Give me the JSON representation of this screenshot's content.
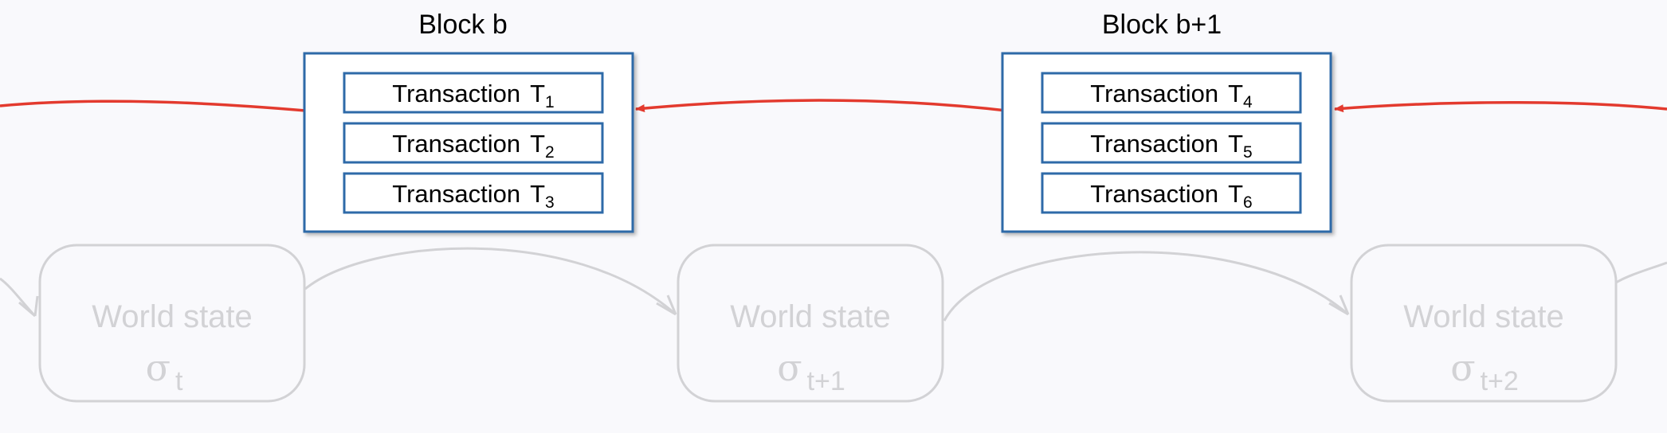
{
  "colors": {
    "background": "#f9f9fc",
    "block_border": "#2e6aa8",
    "arrow": "#e33a2e",
    "world_state": "#d2d2d5"
  },
  "blocks": [
    {
      "title": "Block b",
      "transactions": [
        {
          "label": "Transaction",
          "symbol": "T",
          "subscript": "1"
        },
        {
          "label": "Transaction",
          "symbol": "T",
          "subscript": "2"
        },
        {
          "label": "Transaction",
          "symbol": "T",
          "subscript": "3"
        }
      ]
    },
    {
      "title": "Block b+1",
      "transactions": [
        {
          "label": "Transaction",
          "symbol": "T",
          "subscript": "4"
        },
        {
          "label": "Transaction",
          "symbol": "T",
          "subscript": "5"
        },
        {
          "label": "Transaction",
          "symbol": "T",
          "subscript": "6"
        }
      ]
    }
  ],
  "world_states": [
    {
      "label": "World state",
      "symbol": "σ",
      "subscript": "t"
    },
    {
      "label": "World state",
      "symbol": "σ",
      "subscript": "t+1"
    },
    {
      "label": "World state",
      "symbol": "σ",
      "subscript": "t+2"
    }
  ]
}
